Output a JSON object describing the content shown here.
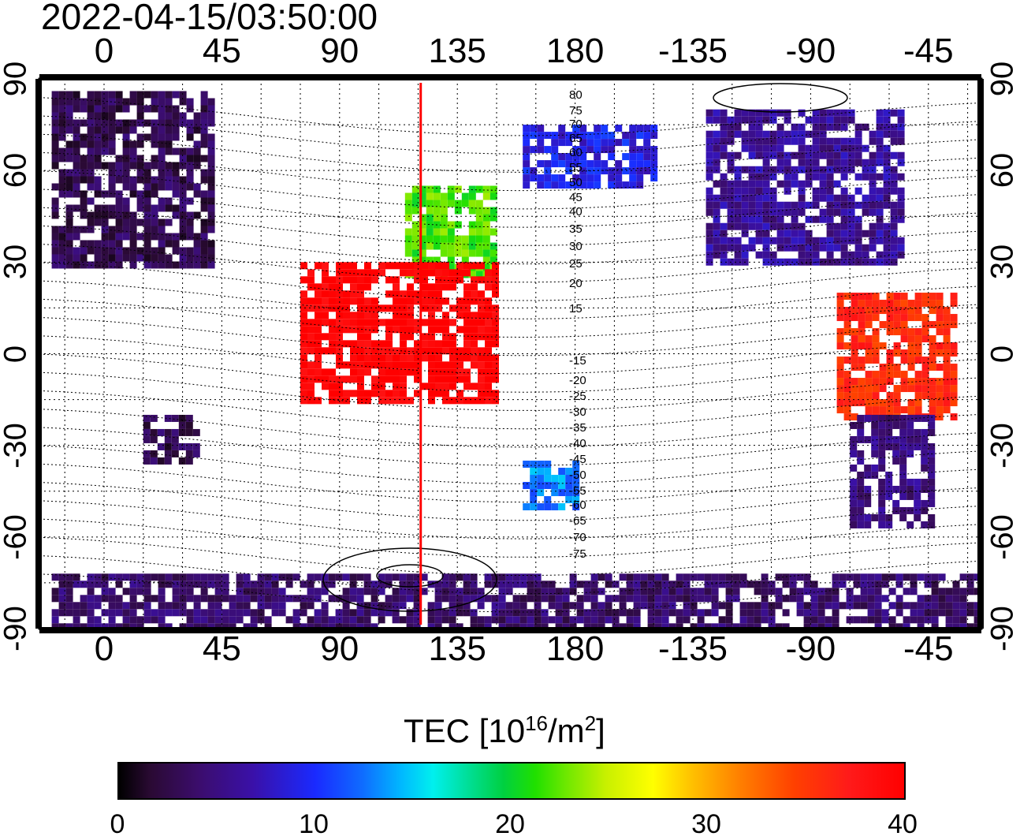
{
  "timestamp": "2022-04-15/03:50:00",
  "x_ticks_top": [
    "0",
    "45",
    "90",
    "135",
    "180",
    "-135",
    "-90",
    "-45"
  ],
  "x_ticks_bottom": [
    "0",
    "45",
    "90",
    "135",
    "180",
    "-135",
    "-90",
    "-45"
  ],
  "y_ticks_left": [
    "90",
    "60",
    "30",
    "0",
    "-30",
    "-60",
    "-90"
  ],
  "y_ticks_right": [
    "90",
    "60",
    "30",
    "0",
    "-30",
    "-60",
    "-90"
  ],
  "contour_labels": [
    "80",
    "75",
    "70",
    "65",
    "60",
    "55",
    "50",
    "45",
    "40",
    "35",
    "30",
    "25",
    "20",
    "15",
    "-15",
    "-20",
    "-25",
    "-30",
    "-35",
    "-40",
    "-45",
    "-50",
    "-55",
    "-60",
    "-65",
    "-70",
    "-75"
  ],
  "colorbar": {
    "title_text": "TEC  [10",
    "title_sup1": "16",
    "title_mid": "/m",
    "title_sup2": "2",
    "title_end": "]",
    "ticks": [
      "0",
      "10",
      "20",
      "30",
      "40"
    ],
    "min": 0,
    "max": 40
  },
  "map_data": {
    "projection": "equirectangular",
    "lon_center": 180,
    "lat_range": [
      -90,
      90
    ],
    "marker_longitude": 121,
    "marker_color": "#ff0000",
    "tec_regions": [
      {
        "name": "europe-russia",
        "lon": [
          -20,
          40
        ],
        "lat": [
          30,
          86
        ],
        "tec": 3
      },
      {
        "name": "north-america",
        "lon": [
          -130,
          -55
        ],
        "lat": [
          30,
          80
        ],
        "tec": 6
      },
      {
        "name": "alaska-siberia",
        "lon": [
          160,
          210
        ],
        "lat": [
          55,
          75
        ],
        "tec": 9
      },
      {
        "name": "east-asia",
        "lon": [
          115,
          150
        ],
        "lat": [
          25,
          55
        ],
        "tec": 22
      },
      {
        "name": "asia-low-lat",
        "lon": [
          75,
          150
        ],
        "lat": [
          -15,
          30
        ],
        "tec": 40
      },
      {
        "name": "south-america-north",
        "lon": [
          -80,
          -35
        ],
        "lat": [
          -20,
          20
        ],
        "tec": 36
      },
      {
        "name": "south-america-south",
        "lon": [
          -75,
          -45
        ],
        "lat": [
          -55,
          -20
        ],
        "tec": 5
      },
      {
        "name": "new-zealand",
        "lon": [
          160,
          180
        ],
        "lat": [
          -50,
          -35
        ],
        "tec": 13
      },
      {
        "name": "south-africa",
        "lon": [
          15,
          35
        ],
        "lat": [
          -35,
          -20
        ],
        "tec": 3
      },
      {
        "name": "antarctica",
        "lon": [
          -20,
          340
        ],
        "lat": [
          -90,
          -72
        ],
        "tec": 4
      }
    ]
  }
}
